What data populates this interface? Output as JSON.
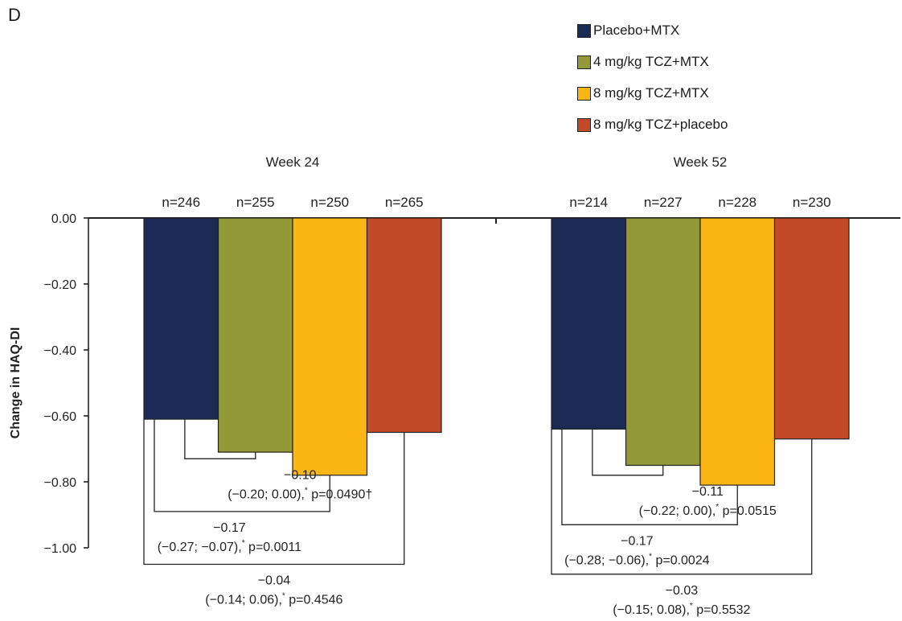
{
  "panel_letter": "D",
  "chart_data": {
    "type": "bar",
    "ylabel": "Change in HAQ-DI",
    "ylim": [
      -1.0,
      0.0
    ],
    "yticks": [
      "0.00",
      "−0.20",
      "−0.40",
      "−0.60",
      "−0.80",
      "−1.00"
    ],
    "ytick_values": [
      0.0,
      -0.2,
      -0.4,
      -0.6,
      -0.8,
      -1.0
    ],
    "legend": [
      {
        "name": "Placebo+MTX",
        "color": "#1c2b55"
      },
      {
        "name": "4 mg/kg TCZ+MTX",
        "color": "#939937"
      },
      {
        "name": "8 mg/kg TCZ+MTX",
        "color": "#fbb616"
      },
      {
        "name": "8 mg/kg TCZ+placebo",
        "color": "#c24a28"
      }
    ],
    "groups": [
      {
        "title": "Week 24",
        "n_labels": [
          "n=246",
          "n=255",
          "n=250",
          "n=265"
        ],
        "values": [
          -0.61,
          -0.71,
          -0.78,
          -0.65
        ],
        "comparisons": [
          {
            "to": 1,
            "bracket_y": -0.73,
            "diff": "−0.10",
            "ci": "(−0.20; 0.00),",
            "p": "p=0.0490†"
          },
          {
            "to": 2,
            "bracket_y": -0.89,
            "diff": "−0.17",
            "ci": "(−0.27; −0.07),",
            "p": "p=0.0011"
          },
          {
            "to": 3,
            "bracket_y": -1.05,
            "diff": "−0.04",
            "ci": "(−0.14; 0.06),",
            "p": "p=0.4546"
          }
        ]
      },
      {
        "title": "Week 52",
        "n_labels": [
          "n=214",
          "n=227",
          "n=228",
          "n=230"
        ],
        "values": [
          -0.64,
          -0.75,
          -0.81,
          -0.67
        ],
        "comparisons": [
          {
            "to": 1,
            "bracket_y": -0.78,
            "diff": "−0.11",
            "ci": "(−0.22; 0.00),",
            "p": "p=0.0515"
          },
          {
            "to": 2,
            "bracket_y": -0.93,
            "diff": "−0.17",
            "ci": "(−0.28;  −0.06),",
            "p": "p=0.0024"
          },
          {
            "to": 3,
            "bracket_y": -1.08,
            "diff": "−0.03",
            "ci": "(−0.15; 0.08),",
            "p": "p=0.5532"
          }
        ]
      }
    ]
  }
}
